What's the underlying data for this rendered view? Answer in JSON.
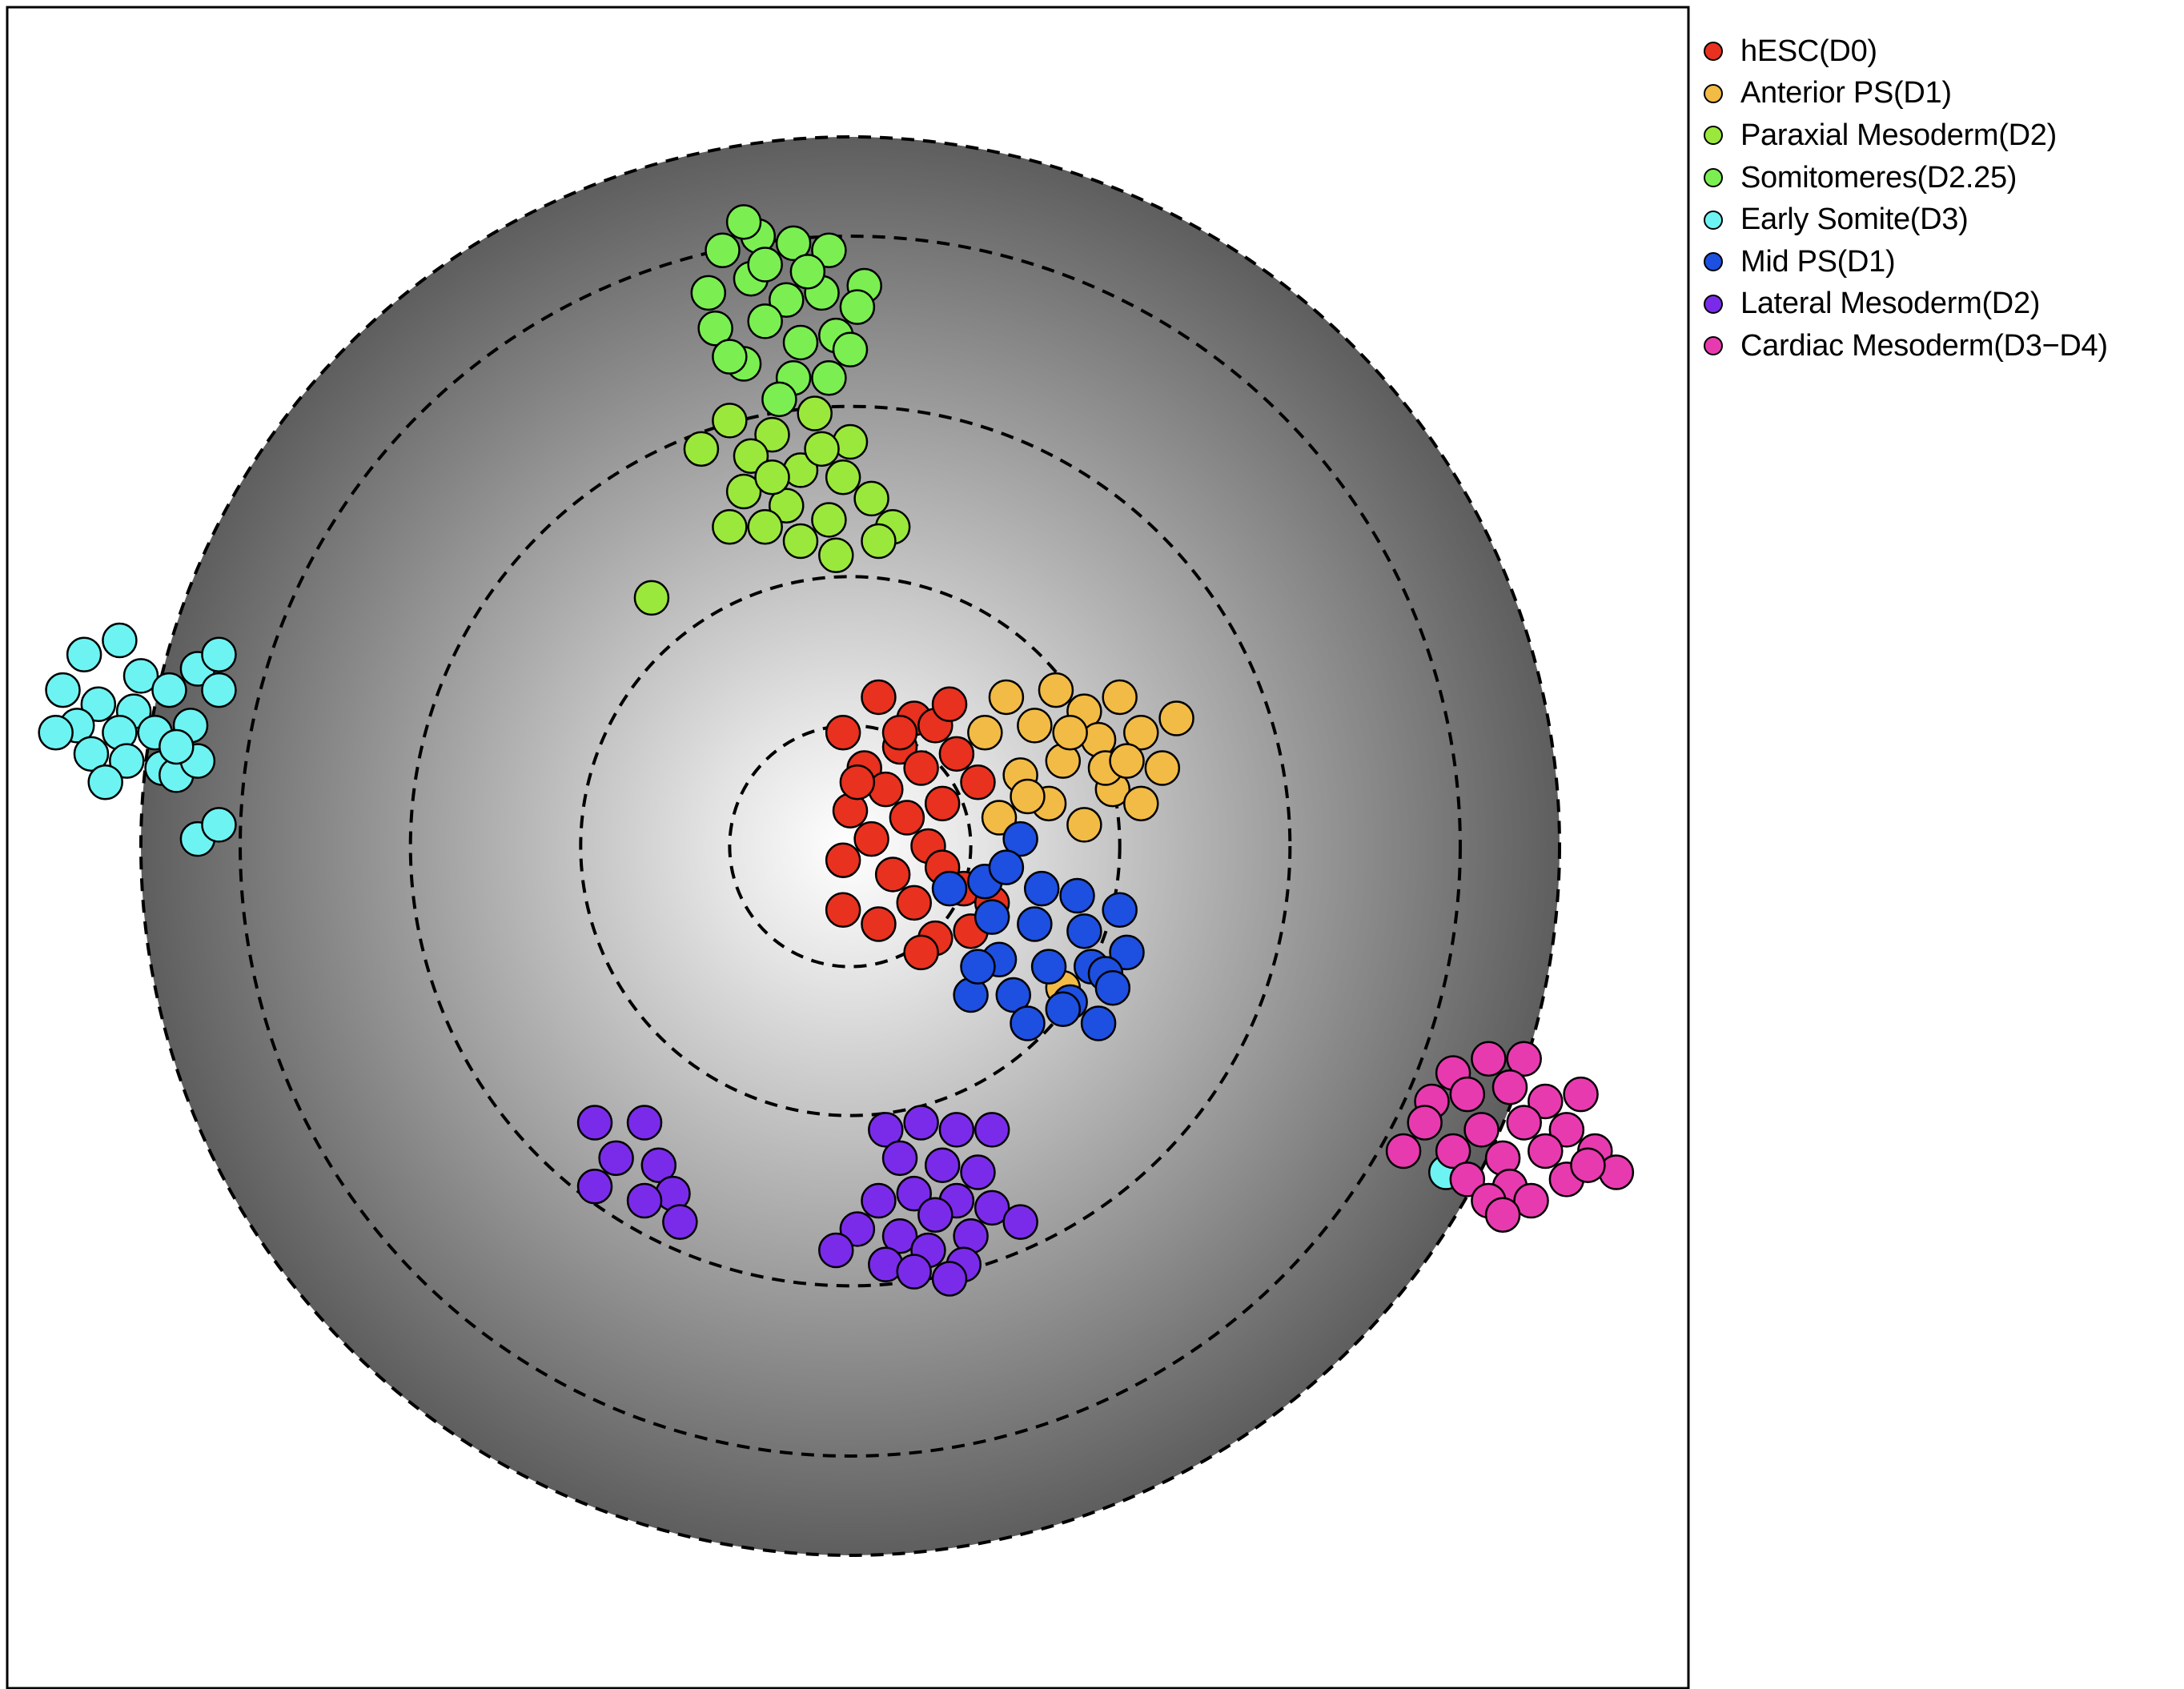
{
  "chart_data": {
    "type": "scatter",
    "title": "",
    "xlabel": "",
    "ylabel": "",
    "xlim": [
      -1.2,
      1.2
    ],
    "ylim": [
      -1.2,
      1.2
    ],
    "axes_visible": false,
    "grid": false,
    "legend_position": "top-right, outside plot",
    "background": "radial grey gradient disc (white center to dark grey edge)",
    "circle_radii": [
      0.17,
      0.38,
      0.62,
      0.86,
      1.0
    ],
    "circle_style": "dashed",
    "series": [
      {
        "name": "hESC(D0)",
        "color": "#E8311F",
        "points": [
          [
            0.04,
            0.21
          ],
          [
            0.09,
            0.18
          ],
          [
            -0.01,
            0.16
          ],
          [
            0.07,
            0.14
          ],
          [
            0.12,
            0.17
          ],
          [
            0.02,
            0.11
          ],
          [
            0.1,
            0.11
          ],
          [
            0.15,
            0.13
          ],
          [
            0.05,
            0.08
          ],
          [
            0.13,
            0.06
          ],
          [
            0.0,
            0.05
          ],
          [
            0.08,
            0.04
          ],
          [
            0.03,
            0.01
          ],
          [
            0.11,
            0.0
          ],
          [
            -0.01,
            -0.02
          ],
          [
            0.06,
            -0.04
          ],
          [
            0.13,
            -0.03
          ],
          [
            0.09,
            -0.08
          ],
          [
            0.16,
            -0.06
          ],
          [
            0.04,
            -0.11
          ],
          [
            0.12,
            -0.13
          ],
          [
            -0.01,
            -0.09
          ],
          [
            0.17,
            -0.12
          ],
          [
            0.1,
            -0.15
          ],
          [
            0.2,
            -0.08
          ],
          [
            0.07,
            0.16
          ],
          [
            0.14,
            0.2
          ],
          [
            0.18,
            0.09
          ],
          [
            0.01,
            0.09
          ]
        ]
      },
      {
        "name": "Anterior PS(D1)",
        "color": "#F2BB45",
        "points": [
          [
            0.22,
            0.21
          ],
          [
            0.29,
            0.22
          ],
          [
            0.26,
            0.17
          ],
          [
            0.33,
            0.19
          ],
          [
            0.38,
            0.21
          ],
          [
            0.35,
            0.15
          ],
          [
            0.41,
            0.16
          ],
          [
            0.44,
            0.11
          ],
          [
            0.3,
            0.12
          ],
          [
            0.24,
            0.1
          ],
          [
            0.37,
            0.08
          ],
          [
            0.28,
            0.06
          ],
          [
            0.21,
            0.04
          ],
          [
            0.33,
            0.03
          ],
          [
            0.41,
            0.06
          ],
          [
            0.19,
            0.16
          ],
          [
            0.31,
            0.16
          ],
          [
            0.36,
            0.11
          ],
          [
            0.25,
            0.07
          ],
          [
            0.46,
            0.18
          ],
          [
            0.39,
            0.12
          ],
          [
            0.3,
            -0.2
          ]
        ]
      },
      {
        "name": "Paraxial Mesoderm(D2)",
        "color": "#9BE83C",
        "points": [
          [
            -0.17,
            0.6
          ],
          [
            -0.11,
            0.58
          ],
          [
            -0.05,
            0.61
          ],
          [
            -0.14,
            0.55
          ],
          [
            -0.07,
            0.53
          ],
          [
            -0.01,
            0.52
          ],
          [
            -0.15,
            0.5
          ],
          [
            -0.09,
            0.48
          ],
          [
            -0.03,
            0.46
          ],
          [
            0.03,
            0.49
          ],
          [
            0.06,
            0.45
          ],
          [
            -0.12,
            0.45
          ],
          [
            -0.07,
            0.43
          ],
          [
            -0.02,
            0.41
          ],
          [
            0.04,
            0.43
          ],
          [
            -0.17,
            0.45
          ],
          [
            0.0,
            0.57
          ],
          [
            -0.11,
            0.52
          ],
          [
            -0.04,
            0.56
          ],
          [
            -0.21,
            0.56
          ],
          [
            -0.28,
            0.35
          ]
        ]
      },
      {
        "name": "Somitomeres(D2.25)",
        "color": "#7BEF52",
        "points": [
          [
            -0.18,
            0.84
          ],
          [
            -0.13,
            0.86
          ],
          [
            -0.08,
            0.85
          ],
          [
            -0.03,
            0.84
          ],
          [
            0.02,
            0.79
          ],
          [
            -0.2,
            0.78
          ],
          [
            -0.14,
            0.8
          ],
          [
            -0.09,
            0.77
          ],
          [
            -0.04,
            0.78
          ],
          [
            0.01,
            0.76
          ],
          [
            -0.19,
            0.73
          ],
          [
            -0.12,
            0.74
          ],
          [
            -0.07,
            0.71
          ],
          [
            -0.02,
            0.72
          ],
          [
            -0.15,
            0.68
          ],
          [
            -0.08,
            0.66
          ],
          [
            -0.03,
            0.66
          ],
          [
            -0.1,
            0.63
          ],
          [
            -0.15,
            0.88
          ],
          [
            -0.06,
            0.81
          ],
          [
            -0.17,
            0.69
          ],
          [
            0.0,
            0.7
          ],
          [
            -0.12,
            0.82
          ]
        ]
      },
      {
        "name": "Early Somite(D3)",
        "color": "#6EF3F3",
        "points": [
          [
            -1.08,
            0.27
          ],
          [
            -1.03,
            0.29
          ],
          [
            -1.0,
            0.24
          ],
          [
            -1.11,
            0.22
          ],
          [
            -1.06,
            0.2
          ],
          [
            -1.01,
            0.19
          ],
          [
            -0.96,
            0.22
          ],
          [
            -0.92,
            0.25
          ],
          [
            -0.89,
            0.27
          ],
          [
            -0.89,
            0.22
          ],
          [
            -1.09,
            0.17
          ],
          [
            -1.03,
            0.16
          ],
          [
            -0.98,
            0.16
          ],
          [
            -1.07,
            0.13
          ],
          [
            -1.02,
            0.12
          ],
          [
            -0.93,
            0.17
          ],
          [
            -0.97,
            0.11
          ],
          [
            -0.95,
            0.1
          ],
          [
            -0.92,
            0.12
          ],
          [
            -0.92,
            0.01
          ],
          [
            -0.89,
            0.03
          ],
          [
            -0.95,
            0.14
          ],
          [
            -1.12,
            0.16
          ],
          [
            -1.05,
            0.09
          ],
          [
            0.84,
            -0.46
          ]
        ]
      },
      {
        "name": "Mid PS(D1)",
        "color": "#1D4FE0",
        "points": [
          [
            0.24,
            0.01
          ],
          [
            0.19,
            -0.05
          ],
          [
            0.27,
            -0.06
          ],
          [
            0.32,
            -0.07
          ],
          [
            0.2,
            -0.1
          ],
          [
            0.26,
            -0.11
          ],
          [
            0.33,
            -0.12
          ],
          [
            0.38,
            -0.09
          ],
          [
            0.39,
            -0.15
          ],
          [
            0.21,
            -0.16
          ],
          [
            0.28,
            -0.17
          ],
          [
            0.34,
            -0.17
          ],
          [
            0.23,
            -0.21
          ],
          [
            0.36,
            -0.18
          ],
          [
            0.31,
            -0.22
          ],
          [
            0.17,
            -0.21
          ],
          [
            0.25,
            -0.25
          ],
          [
            0.3,
            -0.23
          ],
          [
            0.35,
            -0.25
          ],
          [
            0.37,
            -0.2
          ],
          [
            0.18,
            -0.17
          ],
          [
            0.14,
            -0.06
          ],
          [
            0.22,
            -0.03
          ]
        ]
      },
      {
        "name": "Lateral Mesoderm(D2)",
        "color": "#7A2BEA",
        "points": [
          [
            -0.36,
            -0.39
          ],
          [
            -0.29,
            -0.39
          ],
          [
            -0.27,
            -0.45
          ],
          [
            -0.33,
            -0.44
          ],
          [
            -0.25,
            -0.49
          ],
          [
            -0.36,
            -0.48
          ],
          [
            -0.24,
            -0.53
          ],
          [
            -0.29,
            -0.5
          ],
          [
            0.05,
            -0.4
          ],
          [
            0.1,
            -0.39
          ],
          [
            0.15,
            -0.4
          ],
          [
            0.2,
            -0.4
          ],
          [
            0.07,
            -0.44
          ],
          [
            0.13,
            -0.45
          ],
          [
            0.18,
            -0.46
          ],
          [
            0.09,
            -0.49
          ],
          [
            0.15,
            -0.5
          ],
          [
            0.04,
            -0.5
          ],
          [
            0.2,
            -0.51
          ],
          [
            0.12,
            -0.52
          ],
          [
            0.07,
            -0.55
          ],
          [
            0.17,
            -0.55
          ],
          [
            0.05,
            -0.59
          ],
          [
            0.11,
            -0.57
          ],
          [
            0.16,
            -0.59
          ],
          [
            0.24,
            -0.53
          ],
          [
            0.01,
            -0.54
          ],
          [
            0.09,
            -0.6
          ],
          [
            0.14,
            -0.61
          ],
          [
            -0.02,
            -0.57
          ]
        ]
      },
      {
        "name": "Cardiac Mesoderm(D3–D4)",
        "color": "#E83AAF",
        "points": [
          [
            0.85,
            -0.32
          ],
          [
            0.9,
            -0.3
          ],
          [
            0.95,
            -0.3
          ],
          [
            0.82,
            -0.36
          ],
          [
            0.87,
            -0.35
          ],
          [
            0.93,
            -0.34
          ],
          [
            0.98,
            -0.36
          ],
          [
            1.03,
            -0.35
          ],
          [
            0.81,
            -0.39
          ],
          [
            0.89,
            -0.4
          ],
          [
            0.95,
            -0.39
          ],
          [
            1.01,
            -0.4
          ],
          [
            0.78,
            -0.43
          ],
          [
            0.85,
            -0.43
          ],
          [
            0.92,
            -0.44
          ],
          [
            0.98,
            -0.43
          ],
          [
            1.05,
            -0.43
          ],
          [
            0.87,
            -0.47
          ],
          [
            0.93,
            -0.48
          ],
          [
            1.01,
            -0.47
          ],
          [
            1.08,
            -0.46
          ],
          [
            0.9,
            -0.5
          ],
          [
            0.96,
            -0.5
          ],
          [
            1.04,
            -0.45
          ],
          [
            0.92,
            -0.52
          ]
        ]
      }
    ]
  },
  "legend": [
    {
      "label": "hESC(D0)",
      "color": "#E8311F"
    },
    {
      "label": "Anterior PS(D1)",
      "color": "#F2BB45"
    },
    {
      "label": "Paraxial Mesoderm(D2)",
      "color": "#9BE83C"
    },
    {
      "label": "Somitomeres(D2.25)",
      "color": "#7BEF52"
    },
    {
      "label": "Early Somite(D3)",
      "color": "#6EF3F3"
    },
    {
      "label": "Mid PS(D1)",
      "color": "#1D4FE0"
    },
    {
      "label": "Lateral Mesoderm(D2)",
      "color": "#7A2BEA"
    },
    {
      "label": "Cardiac Mesoderm(D3−D4)",
      "color": "#E83AAF"
    }
  ]
}
